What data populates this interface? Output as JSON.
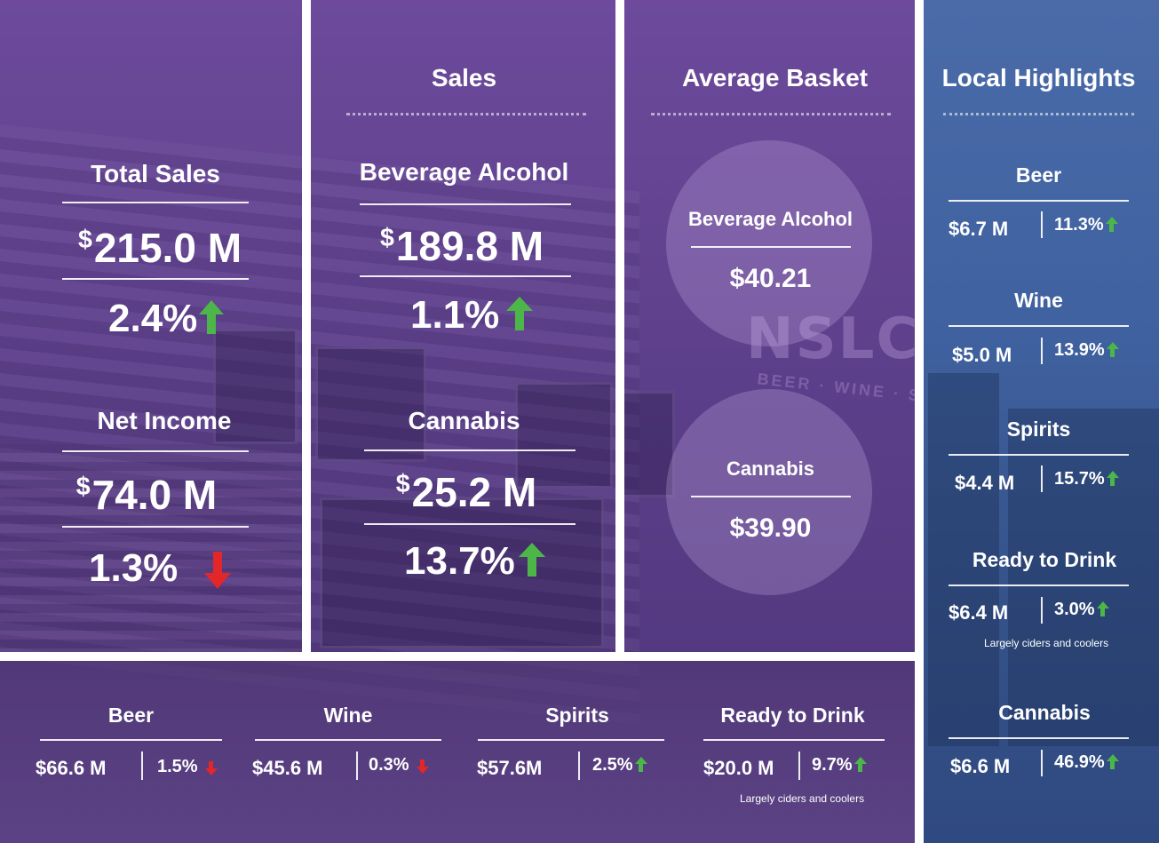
{
  "colors": {
    "up": "#4cb648",
    "down": "#e3262a",
    "panel_blue": "#3f619f",
    "overlay_purple": "#5c3f8a"
  },
  "sections": {
    "sales": "Sales",
    "average_basket": "Average Basket",
    "local_highlights": "Local Highlights"
  },
  "total_sales": {
    "label": "Total Sales",
    "currency": "$",
    "value": "215.0 M",
    "change": "2.4%",
    "direction": "up"
  },
  "net_income": {
    "label": "Net Income",
    "currency": "$",
    "value": "74.0 M",
    "change": "1.3%",
    "direction": "down"
  },
  "sales": {
    "beverage_alcohol": {
      "label": "Beverage Alcohol",
      "currency": "$",
      "value": "189.8 M",
      "change": "1.1%",
      "direction": "up"
    },
    "cannabis": {
      "label": "Cannabis",
      "currency": "$",
      "value": "25.2 M",
      "change": "13.7%",
      "direction": "up"
    }
  },
  "average_basket": {
    "beverage_alcohol": {
      "label": "Beverage Alcohol",
      "value": "$40.21"
    },
    "cannabis": {
      "label": "Cannabis",
      "value": "$39.90"
    }
  },
  "categories": [
    {
      "label": "Beer",
      "value": "$66.6 M",
      "change": "1.5%",
      "direction": "down"
    },
    {
      "label": "Wine",
      "value": "$45.6 M",
      "change": "0.3%",
      "direction": "down"
    },
    {
      "label": "Spirits",
      "value": "$57.6M",
      "change": "2.5%",
      "direction": "up"
    },
    {
      "label": "Ready to Drink",
      "value": "$20.0 M",
      "change": "9.7%",
      "direction": "up",
      "note": "Largely ciders and coolers"
    }
  ],
  "local_highlights": [
    {
      "label": "Beer",
      "value": "$6.7 M",
      "change": "11.3%",
      "direction": "up"
    },
    {
      "label": "Wine",
      "value": "$5.0 M",
      "change": "13.9%",
      "direction": "up"
    },
    {
      "label": "Spirits",
      "value": "$4.4 M",
      "change": "15.7%",
      "direction": "up"
    },
    {
      "label": "Ready to Drink",
      "value": "$6.4 M",
      "change": "3.0%",
      "direction": "up",
      "note": "Largely ciders and coolers"
    },
    {
      "label": "Cannabis",
      "value": "$6.6 M",
      "change": "46.9%",
      "direction": "up"
    }
  ],
  "background": {
    "logo": "NSLC",
    "logo_sub": "BEER · WINE · SPIRITS"
  }
}
